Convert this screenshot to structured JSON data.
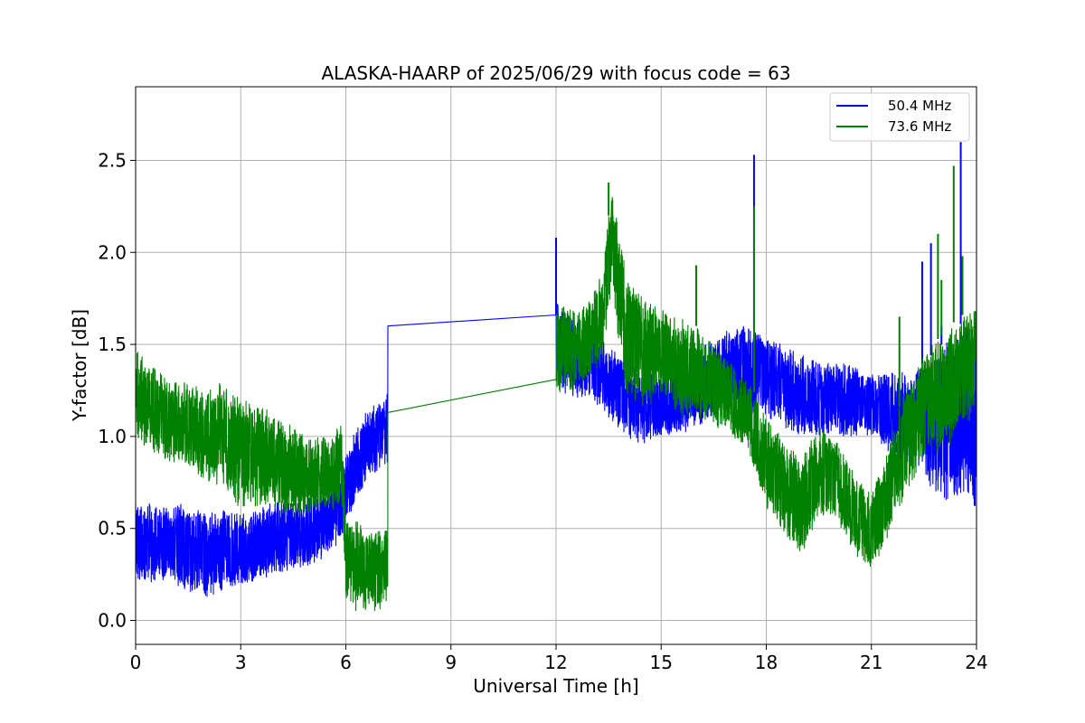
{
  "chart_data": {
    "type": "line",
    "title": "ALASKA-HAARP of 2025/06/29 with focus code = 63",
    "xlabel": "Universal Time [h]",
    "ylabel": "Y-factor [dB]",
    "xlim": [
      0,
      24
    ],
    "ylim": [
      -0.13,
      2.9
    ],
    "xticks": [
      0,
      3,
      6,
      9,
      12,
      15,
      18,
      21,
      24
    ],
    "xtick_labels": [
      "0",
      "3",
      "6",
      "9",
      "12",
      "15",
      "18",
      "21",
      "24"
    ],
    "yticks": [
      0.0,
      0.5,
      1.0,
      1.5,
      2.0,
      2.5
    ],
    "ytick_labels": [
      "0.0",
      "0.5",
      "1.0",
      "1.5",
      "2.0",
      "2.5"
    ],
    "grid": true,
    "legend_position": "top-right",
    "series": [
      {
        "name": "50.4 MHz",
        "color": "#0000ff",
        "band_x": [
          0,
          0.5,
          1,
          1.5,
          2,
          2.5,
          3,
          3.5,
          4,
          4.5,
          5,
          5.5,
          5.9,
          6.0,
          6.3,
          6.6,
          7.0,
          7.2,
          7.21,
          12.0,
          12.01,
          12.5,
          13,
          13.5,
          14,
          14.5,
          15,
          15.5,
          16,
          16.5,
          17,
          17.5,
          18,
          18.5,
          19,
          19.5,
          20,
          20.5,
          21,
          21.5,
          22,
          22.5,
          23,
          23.5,
          24
        ],
        "band_lo": [
          0.2,
          0.2,
          0.2,
          0.15,
          0.12,
          0.15,
          0.18,
          0.22,
          0.25,
          0.27,
          0.3,
          0.35,
          0.42,
          0.5,
          0.65,
          0.75,
          0.8,
          0.85,
          1.6,
          1.66,
          1.25,
          1.2,
          1.2,
          1.1,
          1.0,
          0.95,
          1.0,
          1.0,
          1.05,
          1.1,
          1.15,
          1.1,
          1.1,
          1.05,
          1.0,
          1.0,
          1.0,
          1.0,
          1.0,
          0.9,
          0.85,
          0.75,
          0.65,
          0.6,
          0.6
        ],
        "band_hi": [
          0.65,
          0.65,
          0.65,
          0.62,
          0.6,
          0.6,
          0.6,
          0.62,
          0.65,
          0.65,
          0.68,
          0.72,
          0.82,
          0.9,
          1.05,
          1.15,
          1.2,
          1.25,
          1.6,
          1.66,
          1.75,
          1.65,
          1.6,
          1.5,
          1.4,
          1.35,
          1.35,
          1.4,
          1.45,
          1.55,
          1.6,
          1.6,
          1.55,
          1.5,
          1.45,
          1.4,
          1.4,
          1.4,
          1.35,
          1.35,
          1.35,
          1.4,
          1.5,
          1.6,
          1.7
        ],
        "spikes": [
          [
            12.0,
            2.08
          ],
          [
            17.65,
            2.53
          ],
          [
            22.45,
            1.95
          ],
          [
            23.55,
            2.6
          ],
          [
            22.7,
            2.05
          ],
          [
            23.0,
            1.6
          ]
        ]
      },
      {
        "name": "73.6 MHz",
        "color": "#008000",
        "band_x": [
          0,
          0.5,
          1,
          1.5,
          2,
          2.5,
          3,
          3.5,
          4,
          4.5,
          5,
          5.5,
          5.9,
          6.0,
          6.3,
          6.6,
          7.0,
          7.2,
          7.21,
          12.0,
          12.01,
          12.5,
          13,
          13.3,
          13.6,
          14,
          14.5,
          15,
          15.5,
          16,
          16.5,
          17,
          17.5,
          18,
          18.5,
          19,
          19.5,
          20,
          20.5,
          21,
          21.5,
          22,
          22.5,
          23,
          23.5,
          24
        ],
        "band_lo": [
          1.0,
          0.9,
          0.85,
          0.82,
          0.75,
          0.72,
          0.6,
          0.62,
          0.6,
          0.55,
          0.58,
          0.6,
          0.6,
          0.1,
          0.05,
          0.05,
          0.05,
          0.1,
          1.13,
          1.31,
          1.2,
          1.25,
          1.3,
          1.4,
          1.8,
          1.2,
          1.15,
          1.2,
          1.1,
          1.1,
          1.05,
          1.0,
          0.9,
          0.6,
          0.45,
          0.35,
          0.55,
          0.55,
          0.35,
          0.25,
          0.45,
          0.7,
          0.85,
          0.9,
          1.0,
          1.15
        ],
        "band_hi": [
          1.5,
          1.4,
          1.3,
          1.3,
          1.25,
          1.3,
          1.2,
          1.2,
          1.15,
          1.05,
          1.0,
          1.0,
          1.1,
          0.55,
          0.55,
          0.5,
          0.5,
          0.55,
          1.13,
          1.31,
          1.75,
          1.7,
          1.75,
          1.9,
          2.35,
          1.9,
          1.75,
          1.7,
          1.65,
          1.6,
          1.5,
          1.4,
          1.3,
          1.1,
          1.0,
          0.9,
          1.05,
          1.0,
          0.8,
          0.7,
          0.95,
          1.3,
          1.45,
          1.55,
          1.65,
          1.7
        ],
        "spikes": [
          [
            13.5,
            2.38
          ],
          [
            17.65,
            2.25
          ],
          [
            16.0,
            1.93
          ],
          [
            23.35,
            2.47
          ],
          [
            23.6,
            1.98
          ],
          [
            22.9,
            2.1
          ],
          [
            21.8,
            1.65
          ],
          [
            23.0,
            1.85
          ]
        ]
      }
    ]
  }
}
